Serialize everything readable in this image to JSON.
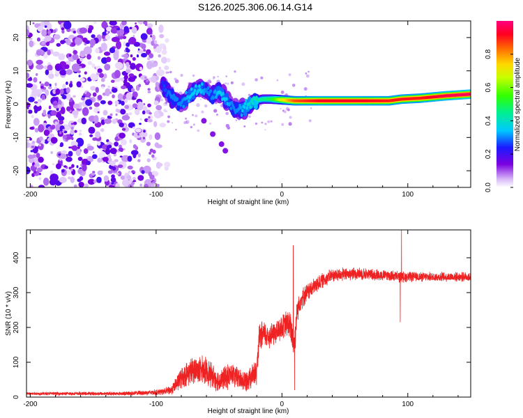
{
  "title": "S126.2025.306.06.14.G14",
  "colors": {
    "snr_line": "#ee2222",
    "axis": "#000000",
    "background": "#ffffff"
  },
  "chart_data": [
    {
      "type": "heatmap",
      "name": "spectrogram",
      "title": "S126.2025.306.06.14.G14",
      "xlabel": "Height of straight line (km)",
      "ylabel": "Frequency (Hz)",
      "xlim": [
        -203,
        150
      ],
      "ylim": [
        -25,
        25
      ],
      "xticks": [
        -200,
        -100,
        0,
        100
      ],
      "yticks": [
        -20,
        -10,
        0,
        10,
        20
      ],
      "grid": false,
      "colorbar": {
        "label": "Normalized spectral amplitude",
        "range": [
          0.0,
          1.0
        ],
        "ticks": [
          0.0,
          0.2,
          0.4,
          0.6,
          0.8
        ],
        "tick_labels": [
          "0.0",
          "0.2",
          "0.4",
          "0.6",
          "0.8"
        ],
        "colormap": "purple-blue-cyan-green-yellow-orange-red-magenta"
      },
      "noise_region_km": [
        -203,
        -95
      ],
      "signal_track": [
        {
          "x": -95,
          "y": 6,
          "amp": 0.25
        },
        {
          "x": -88,
          "y": 2,
          "amp": 0.3
        },
        {
          "x": -80,
          "y": 0,
          "amp": 0.3
        },
        {
          "x": -72,
          "y": 3,
          "amp": 0.35
        },
        {
          "x": -65,
          "y": 5,
          "amp": 0.35
        },
        {
          "x": -60,
          "y": 4,
          "amp": 0.3
        },
        {
          "x": -55,
          "y": 2,
          "amp": 0.3
        },
        {
          "x": -50,
          "y": 4,
          "amp": 0.35
        },
        {
          "x": -45,
          "y": 2,
          "amp": 0.35
        },
        {
          "x": -40,
          "y": -1,
          "amp": 0.3
        },
        {
          "x": -35,
          "y": -2,
          "amp": 0.3
        },
        {
          "x": -30,
          "y": -1,
          "amp": 0.35
        },
        {
          "x": -22,
          "y": 1,
          "amp": 0.4
        },
        {
          "x": -15,
          "y": 1.5,
          "amp": 0.45
        },
        {
          "x": -8,
          "y": 1.5,
          "amp": 0.5
        },
        {
          "x": 0,
          "y": 1.3,
          "amp": 0.7
        },
        {
          "x": 10,
          "y": 1,
          "amp": 0.85
        },
        {
          "x": 30,
          "y": 1,
          "amp": 0.92
        },
        {
          "x": 60,
          "y": 1,
          "amp": 0.92
        },
        {
          "x": 85,
          "y": 1,
          "amp": 0.9
        },
        {
          "x": 95,
          "y": 1.5,
          "amp": 0.9
        },
        {
          "x": 110,
          "y": 1.8,
          "amp": 0.9
        },
        {
          "x": 130,
          "y": 2.5,
          "amp": 0.95
        },
        {
          "x": 150,
          "y": 3,
          "amp": 0.97
        }
      ],
      "secondary_track": [
        {
          "x": -62,
          "y": -5
        },
        {
          "x": -55,
          "y": -9
        },
        {
          "x": -48,
          "y": -12
        },
        {
          "x": -45,
          "y": -14
        }
      ]
    },
    {
      "type": "line",
      "name": "snr",
      "xlabel": "Height of straight line (km)",
      "ylabel": "SNR (10 * v/v)",
      "xlim": [
        -203,
        150
      ],
      "ylim": [
        0,
        480
      ],
      "xticks": [
        -200,
        -100,
        0,
        100
      ],
      "yticks": [
        0,
        100,
        200,
        300,
        400
      ],
      "grid": false,
      "series": [
        {
          "name": "SNR",
          "envelope_x": [
            -203,
            -130,
            -110,
            -95,
            -88,
            -80,
            -70,
            -60,
            -55,
            -50,
            -45,
            -40,
            -35,
            -30,
            -25,
            -20,
            -18,
            -15,
            -10,
            -5,
            0,
            5,
            8,
            10,
            12,
            15,
            20,
            30,
            40,
            60,
            80,
            95,
            110,
            130,
            150
          ],
          "envelope_mean": [
            10,
            10,
            12,
            15,
            20,
            55,
            80,
            75,
            60,
            45,
            55,
            65,
            55,
            45,
            60,
            70,
            170,
            180,
            175,
            185,
            200,
            215,
            180,
            150,
            250,
            280,
            300,
            330,
            350,
            355,
            350,
            345,
            345,
            345,
            345
          ],
          "envelope_spread": [
            5,
            6,
            8,
            10,
            15,
            35,
            45,
            45,
            40,
            35,
            40,
            40,
            35,
            35,
            40,
            40,
            45,
            45,
            40,
            40,
            40,
            45,
            60,
            60,
            40,
            35,
            30,
            25,
            22,
            20,
            18,
            18,
            15,
            15,
            15
          ],
          "spikes": [
            {
              "x": 9,
              "y": 435
            },
            {
              "x": 10,
              "y": 20
            },
            {
              "x": 95,
              "y": 480
            },
            {
              "x": 94,
              "y": 215
            }
          ]
        }
      ]
    }
  ]
}
